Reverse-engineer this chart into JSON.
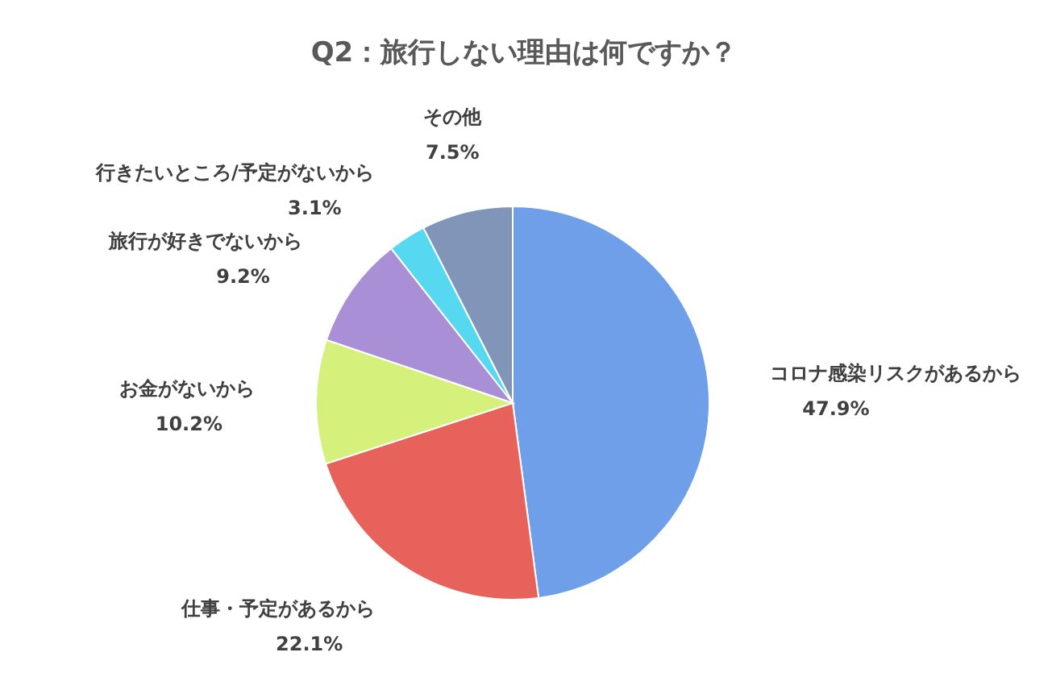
{
  "chart_data": {
    "type": "pie",
    "title": "Q2：旅行しない理由は何ですか？",
    "categories": [
      "コロナ感染リスクがあるから",
      "仕事・予定があるから",
      "お金がないから",
      "旅行が好きでないから",
      "行きたいところ/予定がないから",
      "その他"
    ],
    "values": [
      47.9,
      22.1,
      10.2,
      9.2,
      3.1,
      7.5
    ],
    "value_labels": [
      "47.9%",
      "22.1%",
      "10.2%",
      "9.2%",
      "3.1%",
      "7.5%"
    ],
    "colors": [
      "#6f9fe8",
      "#e8625c",
      "#d6f07c",
      "#a98fd6",
      "#55d8f0",
      "#8095b8"
    ]
  }
}
